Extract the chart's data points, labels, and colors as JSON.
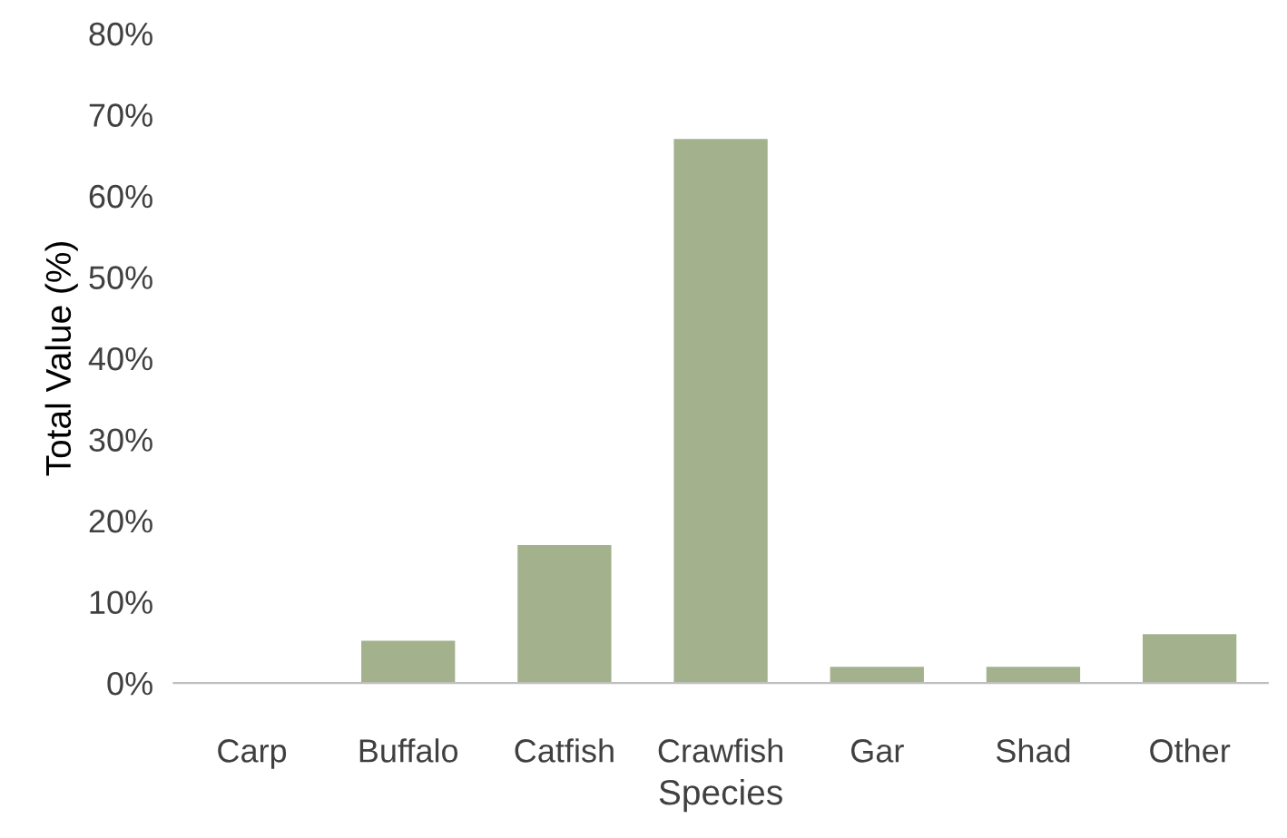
{
  "chart_data": {
    "type": "bar",
    "xlabel": "Species",
    "ylabel": "Total Value (%)",
    "categories": [
      "Carp",
      "Buffalo",
      "Catfish",
      "Crawfish",
      "Gar",
      "Shad",
      "Other"
    ],
    "values": [
      0,
      5.2,
      17,
      67,
      2,
      2,
      6
    ],
    "color": "#a3b18c",
    "ylim": [
      0,
      80
    ],
    "yticks": [
      {
        "value": 0,
        "label": "0%"
      },
      {
        "value": 10,
        "label": "10%"
      },
      {
        "value": 20,
        "label": "20%"
      },
      {
        "value": 30,
        "label": "30%"
      },
      {
        "value": 40,
        "label": "40%"
      },
      {
        "value": 50,
        "label": "50%"
      },
      {
        "value": 60,
        "label": "60%"
      },
      {
        "value": 70,
        "label": "70%"
      },
      {
        "value": 80,
        "label": "80%"
      }
    ],
    "grid": false,
    "legend": false
  }
}
